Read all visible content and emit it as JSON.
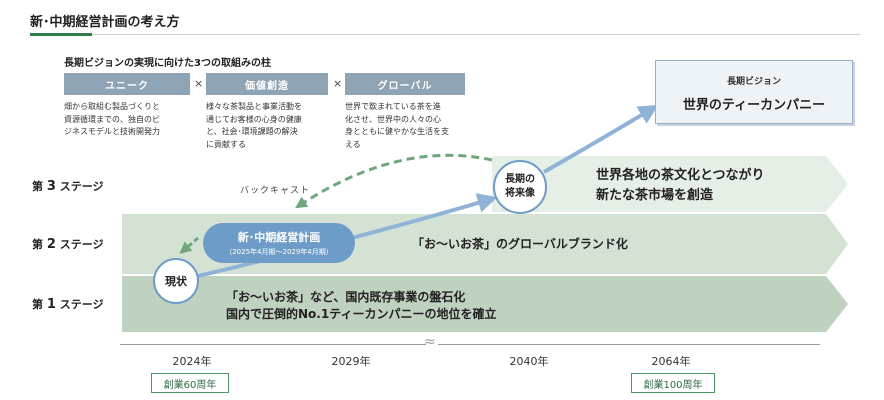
{
  "title": "新･中期経営計画の考え方",
  "pillars": {
    "heading": "長期ビジョンの実現に向けた3つの取組みの柱",
    "times_symbol": "×",
    "items": [
      {
        "label": "ユニーク",
        "lines": [
          "畑から取組む製品づくりと",
          "資源循環までの、独自のビ",
          "ジネスモデルと技術開発力"
        ]
      },
      {
        "label": "価値創造",
        "lines": [
          "様々な茶製品と事業活動を",
          "通じてお客様の心身の健康",
          "と、社会･環境課題の解決",
          "に貢献する"
        ]
      },
      {
        "label": "グローバル",
        "lines": [
          "世界で飲まれている茶を進",
          "化させ、世界中の人々の心",
          "身とともに健やかな生活を支",
          "える"
        ]
      }
    ]
  },
  "vision": {
    "subtitle": "長期ビジョン",
    "title": "世界のティーカンパニー"
  },
  "stages": [
    {
      "prefix": "第",
      "number": "3",
      "suffix": "ステージ",
      "lines": [
        "世界各地の茶文化とつながり",
        "新たな茶市場を創造"
      ]
    },
    {
      "prefix": "第",
      "number": "2",
      "suffix": "ステージ",
      "lines": [
        "「お～いお茶」のグローバルブランド化"
      ]
    },
    {
      "prefix": "第",
      "number": "1",
      "suffix": "ステージ",
      "lines": [
        "「お～いお茶」など、国内既存事業の盤石化",
        "国内で圧倒的No.1ティーカンパニーの地位を確立"
      ]
    }
  ],
  "backcast_label": "バックキャスト",
  "plan": {
    "title": "新･中期経営計画",
    "period": "（2025年4月期～2029年4月期）"
  },
  "current_label": "現状",
  "future_lines": [
    "長期の",
    "将来像"
  ],
  "timeline": {
    "years": [
      "2024年",
      "2029年",
      "2040年",
      "2064年"
    ],
    "break_mark": "≈",
    "milestones": [
      "創業60周年",
      "創業100周年"
    ]
  },
  "colors": {
    "stage1": "#bfd1bf",
    "stage2": "#d4e2d4",
    "stage3": "#e6efe6",
    "accent_blue": "#6e9cc8",
    "backcast_green": "#6da77b",
    "title_green": "#2f7d4a"
  }
}
